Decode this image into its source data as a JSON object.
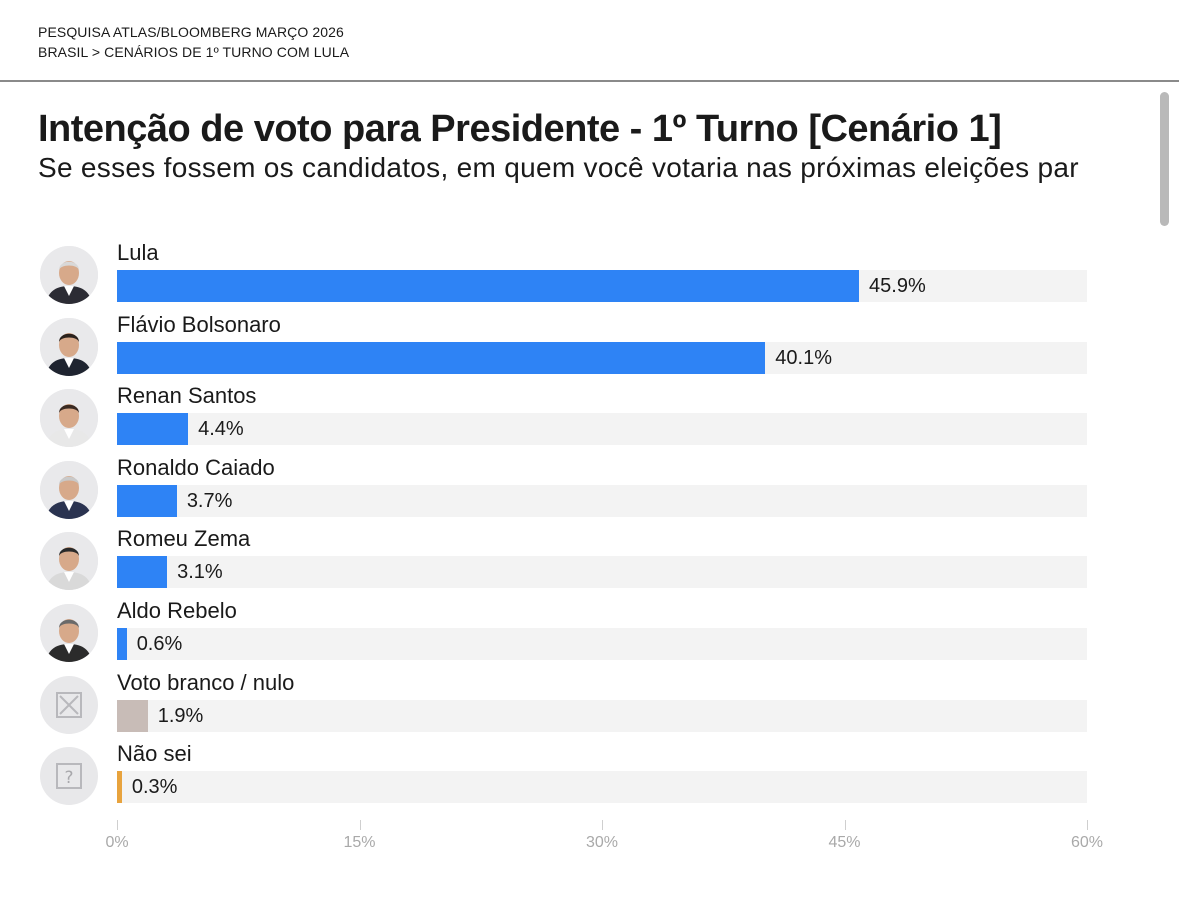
{
  "breadcrumb": {
    "line1": "PESQUISA ATLAS/BLOOMBERG MARÇO 2026",
    "line2": "BRASIL > CENÁRIOS DE 1º TURNO COM LULA"
  },
  "chart_data": {
    "type": "bar",
    "orientation": "horizontal",
    "title": "Intenção de voto para Presidente - 1º Turno [Cenário 1]",
    "subtitle": "Se esses fossem os candidatos, em quem você votaria nas próximas eleições par",
    "categories": [
      "Lula",
      "Flávio Bolsonaro",
      "Renan Santos",
      "Ronaldo Caiado",
      "Romeu Zema",
      "Aldo Rebelo",
      "Voto branco / nulo",
      "Não sei"
    ],
    "values": [
      45.9,
      40.1,
      4.4,
      3.7,
      3.1,
      0.6,
      1.9,
      0.3
    ],
    "value_labels": [
      "45.9%",
      "40.1%",
      "4.4%",
      "3.7%",
      "3.1%",
      "0.6%",
      "1.9%",
      "0.3%"
    ],
    "colors": [
      "#2e83f5",
      "#2e83f5",
      "#2e83f5",
      "#2e83f5",
      "#2e83f5",
      "#2e83f5",
      "#c8bcb7",
      "#e8a33d"
    ],
    "avatars": [
      "candidate-photo-icon",
      "candidate-photo-icon",
      "candidate-photo-icon",
      "candidate-photo-icon",
      "candidate-photo-icon",
      "candidate-photo-icon",
      "x-box-icon",
      "question-box-icon"
    ],
    "xlim": [
      0,
      60
    ],
    "xticks": [
      0,
      15,
      30,
      45,
      60
    ],
    "xtick_labels": [
      "0%",
      "15%",
      "30%",
      "45%",
      "60%"
    ],
    "xlabel": "",
    "ylabel": "",
    "grid": false
  }
}
